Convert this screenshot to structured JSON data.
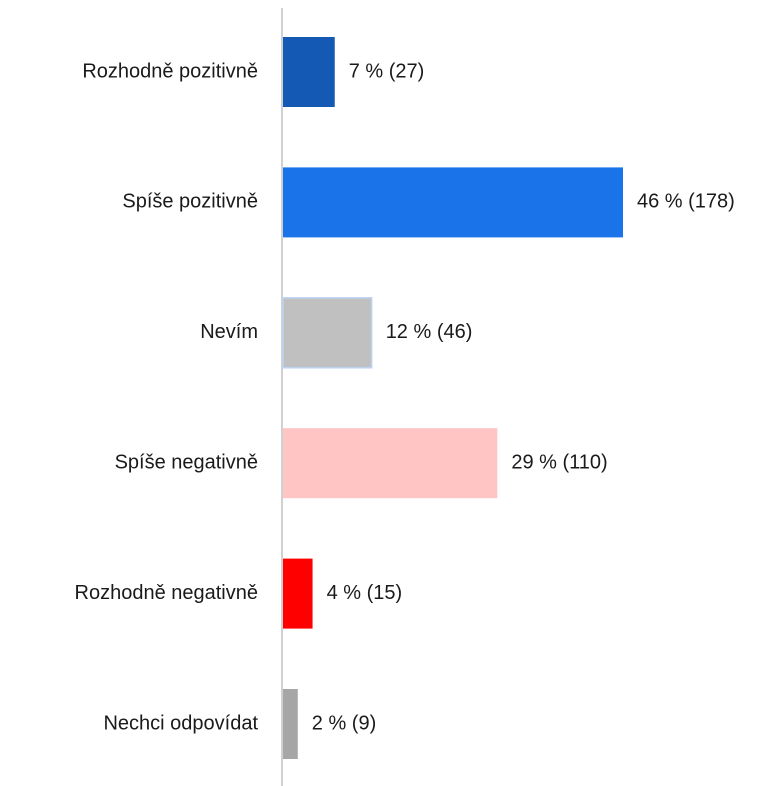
{
  "chart_data": {
    "type": "barh",
    "categories": [
      "Rozhodně pozitivně",
      "Spíše pozitivně",
      "Nevím",
      "Spíše negativně",
      "Rozhodně negativně",
      "Nechci odpovídat"
    ],
    "values": [
      7,
      46,
      12,
      29,
      4,
      2
    ],
    "value_labels": [
      "7 % (27)",
      "46 % (178)",
      "12 % (46)",
      "29 % (110)",
      "4 % (15)",
      "2 % (9)"
    ],
    "colors": [
      "#1459b3",
      "#1a73e8",
      "#c0c0c0",
      "#ffc4c4",
      "#ff0000",
      "#a6a6a6"
    ],
    "grid": false
  }
}
